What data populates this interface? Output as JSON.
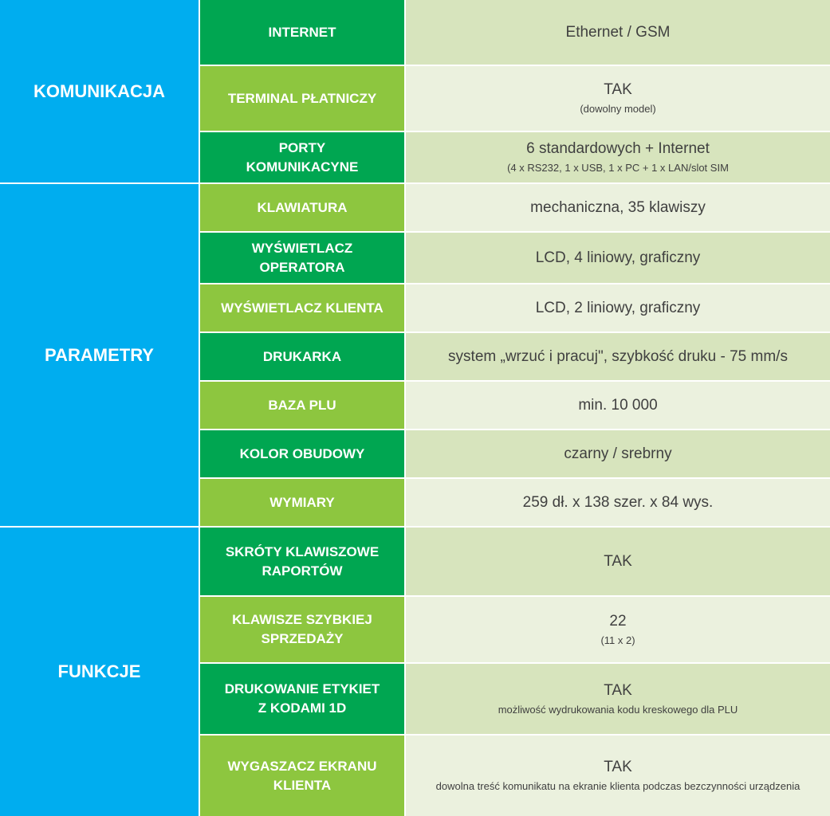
{
  "categories": [
    {
      "name": "KOMUNIKACJA"
    },
    {
      "name": "PARAMETRY"
    },
    {
      "name": "FUNKCJE"
    }
  ],
  "rows": [
    {
      "label": "INTERNET",
      "value": "Ethernet / GSM",
      "note": ""
    },
    {
      "label": "TERMINAL PŁATNICZY",
      "value": "TAK",
      "note": "(dowolny model)"
    },
    {
      "label": "PORTY\nKOMUNIKACYNE",
      "value": "6 standardowych + Internet",
      "note": "(4 x RS232, 1 x USB, 1 x PC + 1 x LAN/slot SIM"
    },
    {
      "label": "KLAWIATURA",
      "value": "mechaniczna, 35 klawiszy",
      "note": ""
    },
    {
      "label": "WYŚWIETLACZ\nOPERATORA",
      "value": "LCD, 4 liniowy, graficzny",
      "note": ""
    },
    {
      "label": "WYŚWIETLACZ KLIENTA",
      "value": "LCD, 2 liniowy, graficzny",
      "note": ""
    },
    {
      "label": "DRUKARKA",
      "value": "system „wrzuć i pracuj\",  szybkość druku - 75 mm/s",
      "note": ""
    },
    {
      "label": "BAZA PLU",
      "value": "min. 10 000",
      "note": ""
    },
    {
      "label": "KOLOR OBUDOWY",
      "value": "czarny / srebrny",
      "note": ""
    },
    {
      "label": "WYMIARY",
      "value": "259 dł. x  138 szer.  x   84 wys.",
      "note": ""
    },
    {
      "label": "SKRÓTY KLAWISZOWE\nRAPORTÓW",
      "value": "TAK",
      "note": ""
    },
    {
      "label": "KLAWISZE SZYBKIEJ\nSPRZEDAŻY",
      "value": "22",
      "note": "(11 x 2)"
    },
    {
      "label": "DRUKOWANIE ETYKIET\nZ KODAMI 1D",
      "value": "TAK",
      "note": "możliwość wydrukowania kodu kreskowego dla PLU"
    },
    {
      "label": "WYGASZACZ EKRANU\nKLIENTA",
      "value": "TAK",
      "note": "dowolna treść komunikatu na ekranie klienta podczas bezczynności urządzenia"
    }
  ]
}
